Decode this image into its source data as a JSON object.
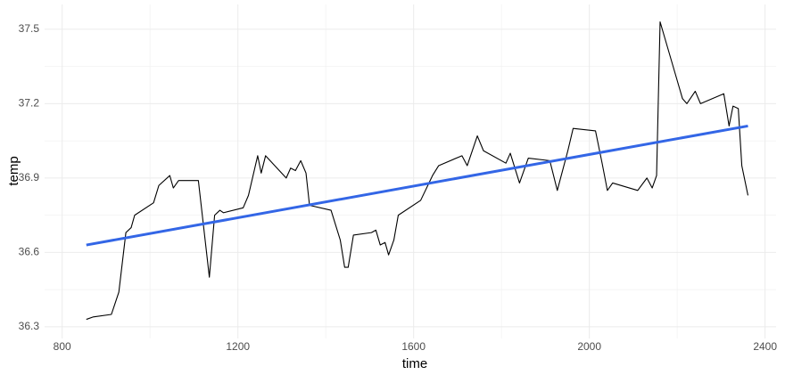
{
  "chart_data": {
    "type": "line",
    "x_label": "time",
    "y_label": "temp",
    "xlim": [
      760,
      2425
    ],
    "ylim": [
      36.253,
      37.6
    ],
    "xticks": [
      800,
      1200,
      1600,
      2000,
      2400
    ],
    "yticks": [
      {
        "value": 36.3,
        "label": "36.3"
      },
      {
        "value": 36.6,
        "label": "36.6"
      },
      {
        "value": 36.9,
        "label": "36.9"
      },
      {
        "value": 37.2,
        "label": "37.2"
      },
      {
        "value": 37.5,
        "label": "37.5"
      }
    ],
    "x_minor_grid": [
      1000,
      1400,
      1800,
      2200
    ],
    "y_minor_grid": [
      36.45,
      36.75,
      37.05,
      37.35
    ],
    "grid": true,
    "series": [
      {
        "color": "#000000",
        "x": [
          855,
          871,
          912,
          929,
          945,
          957,
          965,
          1008,
          1020,
          1045,
          1053,
          1065,
          1110,
          1135,
          1147,
          1159,
          1167,
          1212,
          1224,
          1245,
          1253,
          1263,
          1310,
          1320,
          1331,
          1343,
          1355,
          1363,
          1412,
          1433,
          1443,
          1451,
          1463,
          1504,
          1514,
          1524,
          1535,
          1543,
          1555,
          1565,
          1616,
          1643,
          1657,
          1710,
          1722,
          1745,
          1759,
          1810,
          1820,
          1841,
          1861,
          1910,
          1927,
          1951,
          1963,
          2014,
          2029,
          2041,
          2053,
          2110,
          2131,
          2143,
          2153,
          2161,
          2212,
          2222,
          2241,
          2253,
          2306,
          2318,
          2327,
          2339,
          2347,
          2361
        ],
        "values": [
          36.33,
          36.34,
          36.35,
          36.44,
          36.68,
          36.7,
          36.75,
          36.8,
          36.87,
          36.91,
          36.86,
          36.89,
          36.89,
          36.5,
          36.75,
          36.77,
          36.76,
          36.78,
          36.83,
          36.99,
          36.92,
          36.99,
          36.9,
          36.94,
          36.93,
          36.97,
          36.92,
          36.79,
          36.77,
          36.65,
          36.54,
          36.54,
          36.67,
          36.68,
          36.69,
          36.63,
          36.64,
          36.59,
          36.65,
          36.75,
          36.81,
          36.91,
          36.95,
          36.99,
          36.95,
          37.07,
          37.01,
          36.96,
          37.0,
          36.88,
          36.98,
          36.97,
          36.85,
          37.01,
          37.1,
          37.09,
          36.96,
          36.85,
          36.88,
          36.85,
          36.9,
          36.86,
          36.91,
          37.53,
          37.22,
          37.2,
          37.25,
          37.2,
          37.24,
          37.11,
          37.19,
          37.18,
          36.95,
          36.83
        ]
      },
      {
        "color": "#3366e6",
        "x": [
          855,
          2361
        ],
        "values": [
          36.63,
          37.11
        ]
      }
    ]
  }
}
